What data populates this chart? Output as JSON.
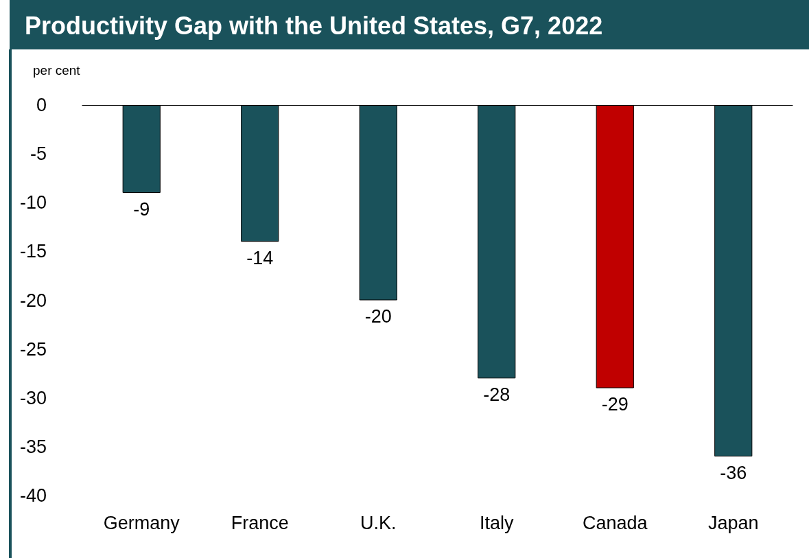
{
  "chart_data": {
    "type": "bar",
    "title": "Productivity Gap with the United States, G7, 2022",
    "ylabel": "per cent",
    "categories": [
      "Germany",
      "France",
      "U.K.",
      "Italy",
      "Canada",
      "Japan"
    ],
    "values": [
      -9,
      -14,
      -20,
      -28,
      -29,
      -36
    ],
    "colors": [
      "#1a525b",
      "#1a525b",
      "#1a525b",
      "#1a525b",
      "#c00000",
      "#1a525b"
    ],
    "ylim": [
      -40,
      0
    ],
    "yticks": [
      0,
      -5,
      -10,
      -15,
      -20,
      -25,
      -30,
      -35,
      -40
    ],
    "grid": false,
    "data_labels": true
  }
}
